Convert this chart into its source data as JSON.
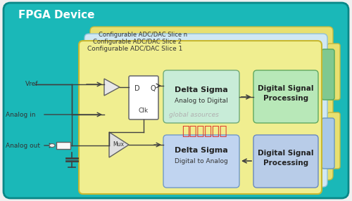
{
  "bg_color": "#f0f0f0",
  "fpga_bg": "#1ab8b8",
  "fpga_border": "#0a8888",
  "fpga_title": "FPGA Device",
  "fpga_title_color": "#ffffff",
  "slice_n_bg": "#e8e070",
  "slice_n_border": "#c0b840",
  "slice_2_bg": "#d0e8f4",
  "slice_2_border": "#90c0d8",
  "slice_1_bg": "#f0ee90",
  "slice_1_border": "#c8b830",
  "tab_green_bg": "#80c890",
  "tab_green_border": "#50a860",
  "tab_blue_bg": "#a8c8e8",
  "tab_blue_border": "#6898c0",
  "ds_adc_bg": "#c8ecd8",
  "ds_adc_border": "#70aa78",
  "ds_adc_hatch": "#a8d8c0",
  "ds_dac_bg": "#c0d4f0",
  "ds_dac_border": "#7098c8",
  "dsp_top_bg": "#b8e8b8",
  "dsp_top_border": "#60a860",
  "dsp_bot_bg": "#b8cce8",
  "dsp_bot_border": "#6888c0",
  "dff_bg": "#ffffff",
  "dff_border": "#707070",
  "tri_bg": "#e8e8e8",
  "tri_border": "#606060",
  "mux_bg": "#e0e0e0",
  "mux_border": "#606060",
  "slice_n_label": "Configurable ADC/DAC Slice n",
  "slice_2_label": "Configurable ADC/DAC Slice 2",
  "slice_1_label": "Configurable ADC/DAC Slice 1",
  "ds_adc_line1": "Delta Sigma",
  "ds_adc_line2": "Analog to Digital",
  "ds_dac_line1": "Delta Sigma",
  "ds_dac_line2": "Digital to Analog",
  "dsp_top_line1": "Digital Signal",
  "dsp_top_line2": "Processing",
  "dsp_bot_line1": "Digital Signal",
  "dsp_bot_line2": "Processing",
  "vref_label": "Vref",
  "analog_in_label": "Analog in",
  "analog_out_label": "Analog out",
  "mux_label": "Mux",
  "dff_d": "D",
  "dff_q": "Q",
  "dff_clk": "Clk",
  "watermark1": "global asources",
  "watermark2": "电子工程专辑",
  "line_color": "#404040",
  "text_dark": "#333333",
  "text_label": "#555555"
}
